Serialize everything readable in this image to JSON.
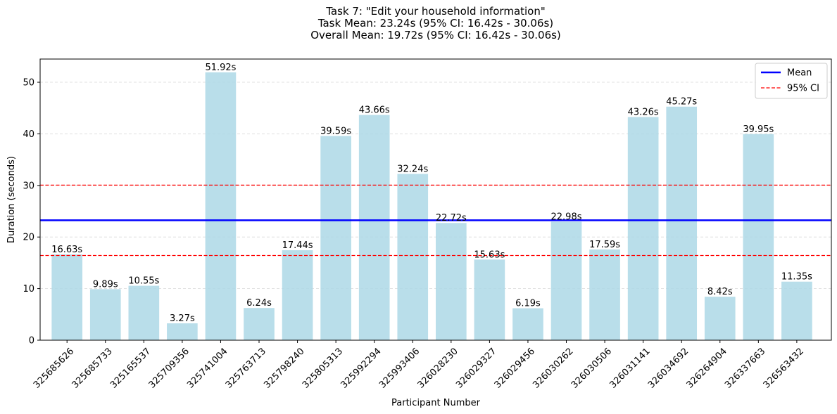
{
  "chart_data": {
    "type": "bar",
    "title_lines": [
      "Task 7: \"Edit your household information\"",
      "Task Mean: 23.24s (95% CI: 16.42s - 30.06s)",
      "Overall Mean: 19.72s (95% CI: 16.42s - 30.06s)"
    ],
    "xlabel": "Participant Number",
    "ylabel": "Duration (seconds)",
    "ylim": [
      0,
      54.5
    ],
    "yticks": [
      0,
      10,
      20,
      30,
      40,
      50
    ],
    "categories": [
      "325685626",
      "325685733",
      "325165537",
      "325709356",
      "325741004",
      "325763713",
      "325798240",
      "325805313",
      "325992294",
      "325993406",
      "326028230",
      "326029327",
      "326029456",
      "326030262",
      "326030506",
      "326031141",
      "326034692",
      "326264904",
      "326337663",
      "326563432"
    ],
    "values": [
      16.63,
      9.89,
      10.55,
      3.27,
      51.92,
      6.24,
      17.44,
      39.59,
      43.66,
      32.24,
      22.72,
      15.63,
      6.19,
      22.98,
      17.59,
      43.26,
      45.27,
      8.42,
      39.95,
      11.35
    ],
    "value_labels": [
      "16.63s",
      "9.89s",
      "10.55s",
      "3.27s",
      "51.92s",
      "6.24s",
      "17.44s",
      "39.59s",
      "43.66s",
      "32.24s",
      "22.72s",
      "15.63s",
      "6.19s",
      "22.98s",
      "17.59s",
      "43.26s",
      "45.27s",
      "8.42s",
      "39.95s",
      "11.35s"
    ],
    "mean_line": 23.24,
    "ci_lines": [
      16.42,
      30.06
    ],
    "legend": {
      "placement": "top-right",
      "items": [
        {
          "label": "Mean",
          "style": "solid"
        },
        {
          "label": "95% CI",
          "style": "dashed"
        }
      ]
    },
    "grid": "y-dashed",
    "colors": {
      "bar": "#add8e6",
      "mean": "#0000ff",
      "ci": "#ff0000",
      "grid": "#d9d9d9"
    }
  }
}
